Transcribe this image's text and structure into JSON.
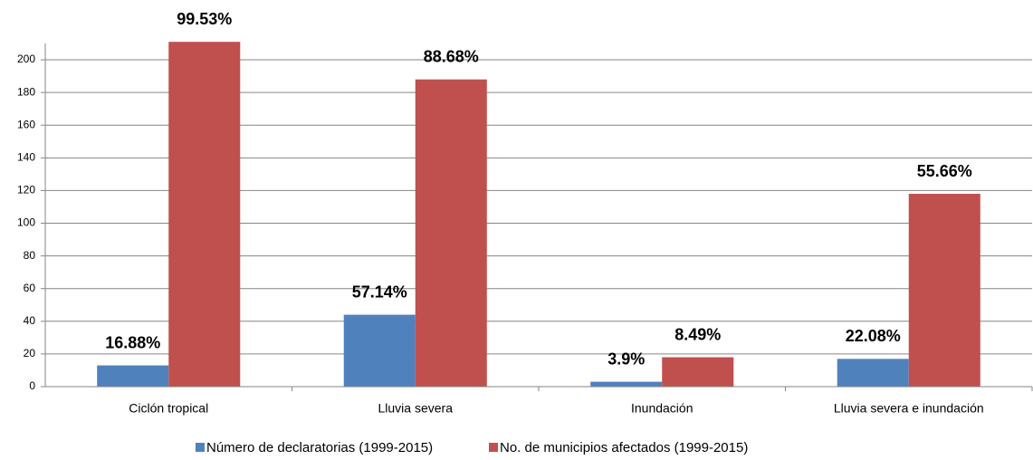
{
  "chart_data": {
    "type": "bar",
    "categories": [
      "Ciclón tropical",
      "Lluvia severa",
      "Inundación",
      "Lluvia severa e inundación"
    ],
    "series": [
      {
        "name": "Número de declaratorias (1999-2015)",
        "color": "#4f81bd",
        "values": [
          13,
          44,
          3,
          17
        ],
        "labels": [
          "16.88%",
          "57.14%",
          "3.9%",
          "22.08%"
        ]
      },
      {
        "name": "No. de municipios afectados (1999-2015)",
        "color": "#c0504d",
        "values": [
          211,
          188,
          18,
          118
        ],
        "labels": [
          "99.53%",
          "88.68%",
          "8.49%",
          "55.66%"
        ]
      }
    ],
    "ylim": [
      0,
      210
    ],
    "yticks": [
      0,
      20,
      40,
      60,
      80,
      100,
      120,
      140,
      160,
      180,
      200
    ],
    "grid": true,
    "legend": "bottom"
  }
}
